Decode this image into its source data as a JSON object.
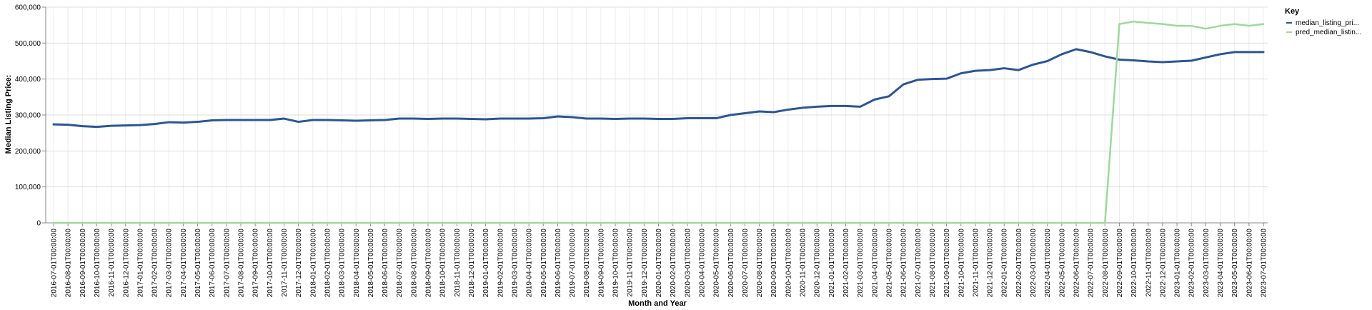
{
  "chart_data": {
    "type": "line",
    "xlabel": "Month and Year",
    "ylabel": "Median Listing Price:",
    "ylim": [
      0,
      600000
    ],
    "y_ticks": [
      "0",
      "100,000",
      "200,000",
      "300,000",
      "400,000",
      "500,000",
      "600,000"
    ],
    "grid": true,
    "legend": {
      "title": "Key",
      "position": "top-right"
    },
    "x": [
      "2016-07-01T00:00:00",
      "2016-08-01T00:00:00",
      "2016-09-01T00:00:00",
      "2016-10-01T00:00:00",
      "2016-11-01T00:00:00",
      "2016-12-01T00:00:00",
      "2017-01-01T00:00:00",
      "2017-02-01T00:00:00",
      "2017-03-01T00:00:00",
      "2017-04-01T00:00:00",
      "2017-05-01T00:00:00",
      "2017-06-01T00:00:00",
      "2017-07-01T00:00:00",
      "2017-08-01T00:00:00",
      "2017-09-01T00:00:00",
      "2017-10-01T00:00:00",
      "2017-11-01T00:00:00",
      "2017-12-01T00:00:00",
      "2018-01-01T00:00:00",
      "2018-02-01T00:00:00",
      "2018-03-01T00:00:00",
      "2018-04-01T00:00:00",
      "2018-05-01T00:00:00",
      "2018-06-01T00:00:00",
      "2018-07-01T00:00:00",
      "2018-08-01T00:00:00",
      "2018-09-01T00:00:00",
      "2018-10-01T00:00:00",
      "2018-11-01T00:00:00",
      "2018-12-01T00:00:00",
      "2019-01-01T00:00:00",
      "2019-02-01T00:00:00",
      "2019-03-01T00:00:00",
      "2019-04-01T00:00:00",
      "2019-05-01T00:00:00",
      "2019-06-01T00:00:00",
      "2019-07-01T00:00:00",
      "2019-08-01T00:00:00",
      "2019-09-01T00:00:00",
      "2019-10-01T00:00:00",
      "2019-11-01T00:00:00",
      "2019-12-01T00:00:00",
      "2020-01-01T00:00:00",
      "2020-02-01T00:00:00",
      "2020-03-01T00:00:00",
      "2020-04-01T00:00:00",
      "2020-05-01T00:00:00",
      "2020-06-01T00:00:00",
      "2020-07-01T00:00:00",
      "2020-08-01T00:00:00",
      "2020-09-01T00:00:00",
      "2020-10-01T00:00:00",
      "2020-11-01T00:00:00",
      "2020-12-01T00:00:00",
      "2021-01-01T00:00:00",
      "2021-02-01T00:00:00",
      "2021-03-01T00:00:00",
      "2021-04-01T00:00:00",
      "2021-05-01T00:00:00",
      "2021-06-01T00:00:00",
      "2021-07-01T00:00:00",
      "2021-08-01T00:00:00",
      "2021-09-01T00:00:00",
      "2021-10-01T00:00:00",
      "2021-11-01T00:00:00",
      "2021-12-01T00:00:00",
      "2022-01-01T00:00:00",
      "2022-02-01T00:00:00",
      "2022-03-01T00:00:00",
      "2022-04-01T00:00:00",
      "2022-05-01T00:00:00",
      "2022-06-01T00:00:00",
      "2022-07-01T00:00:00",
      "2022-08-01T00:00:00",
      "2022-09-01T00:00:00",
      "2022-10-01T00:00:00",
      "2022-11-01T00:00:00",
      "2022-12-01T00:00:00",
      "2023-01-01T00:00:00",
      "2023-02-01T00:00:00",
      "2023-03-01T00:00:00",
      "2023-04-01T00:00:00",
      "2023-05-01T00:00:00",
      "2023-06-01T00:00:00",
      "2023-07-01T00:00:00"
    ],
    "series": [
      {
        "name": "median_listing_pri...",
        "color": "#2c5597",
        "values": [
          274000,
          273000,
          269000,
          267000,
          270000,
          271000,
          272000,
          275000,
          280000,
          279000,
          281000,
          285000,
          286000,
          286000,
          286000,
          286000,
          290000,
          281000,
          286000,
          286000,
          285000,
          284000,
          285000,
          286000,
          290000,
          290000,
          289000,
          290000,
          290000,
          289000,
          288000,
          290000,
          290000,
          290000,
          291000,
          296000,
          294000,
          290000,
          290000,
          289000,
          290000,
          290000,
          289000,
          289000,
          291000,
          291000,
          291000,
          300000,
          305000,
          310000,
          308000,
          315000,
          320000,
          323000,
          325000,
          325000,
          323000,
          343000,
          352000,
          385000,
          398000,
          400000,
          401000,
          416000,
          423000,
          425000,
          430000,
          425000,
          440000,
          450000,
          469000,
          483000,
          475000,
          463000,
          454000,
          452000,
          449000,
          447000,
          449000,
          451000,
          460000,
          469000,
          475000,
          475000,
          475000
        ]
      },
      {
        "name": "pred_median_listin...",
        "color": "#9ed99a",
        "values": [
          0,
          0,
          0,
          0,
          0,
          0,
          0,
          0,
          0,
          0,
          0,
          0,
          0,
          0,
          0,
          0,
          0,
          0,
          0,
          0,
          0,
          0,
          0,
          0,
          0,
          0,
          0,
          0,
          0,
          0,
          0,
          0,
          0,
          0,
          0,
          0,
          0,
          0,
          0,
          0,
          0,
          0,
          0,
          0,
          0,
          0,
          0,
          0,
          0,
          0,
          0,
          0,
          0,
          0,
          0,
          0,
          0,
          0,
          0,
          0,
          0,
          0,
          0,
          0,
          0,
          0,
          0,
          0,
          0,
          0,
          0,
          0,
          0,
          0,
          553000,
          560000,
          556000,
          553000,
          548000,
          548000,
          540000,
          548000,
          553000,
          548000,
          553000
        ]
      }
    ]
  }
}
